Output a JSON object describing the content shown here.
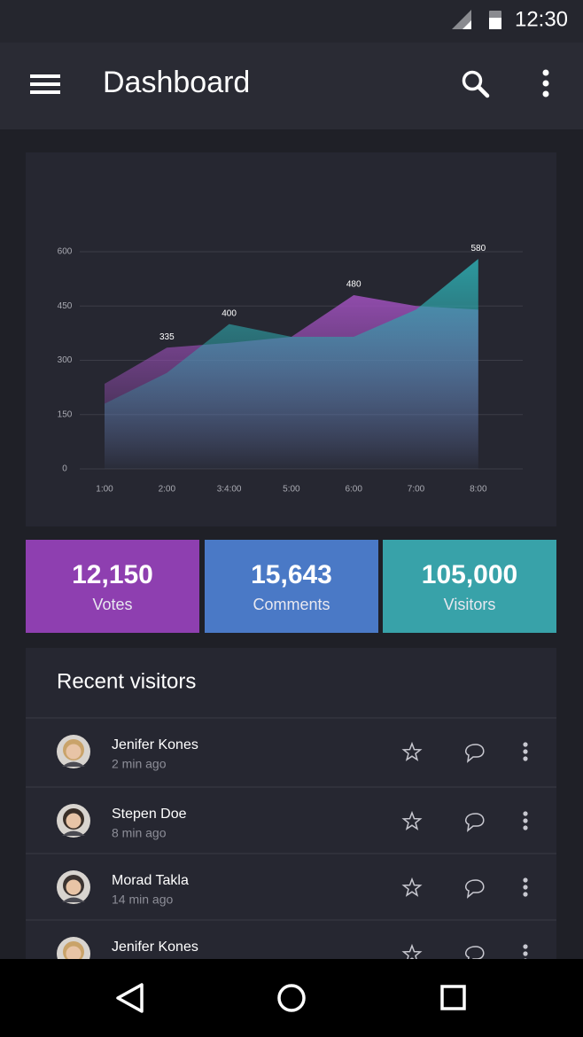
{
  "status_bar": {
    "time": "12:30"
  },
  "app_bar": {
    "title": "Dashboard"
  },
  "chart_data": {
    "type": "area",
    "categories": [
      "1:00",
      "2:00",
      "3:4:00",
      "5:00",
      "6:00",
      "7:00",
      "8:00"
    ],
    "series": [
      {
        "color": "#9b4fb8",
        "values": [
          235,
          335,
          348,
          365,
          480,
          450,
          440
        ],
        "value_labels": [
          null,
          "335",
          null,
          null,
          "480",
          null,
          null
        ]
      },
      {
        "color": "#2ea6ab",
        "values": [
          180,
          265,
          400,
          365,
          365,
          440,
          580
        ],
        "value_labels": [
          null,
          null,
          "400",
          null,
          null,
          null,
          "580"
        ]
      }
    ],
    "ylim": [
      0,
      600
    ],
    "yticks": [
      0,
      150,
      300,
      450,
      600
    ],
    "grid": true
  },
  "stats": [
    {
      "value": "12,150",
      "label": "Votes",
      "color": "#8e3fb0"
    },
    {
      "value": "15,643",
      "label": "Comments",
      "color": "#4a79c6"
    },
    {
      "value": "105,000",
      "label": "Visitors",
      "color": "#38a2a9"
    }
  ],
  "recent_visitors": {
    "title": "Recent visitors",
    "items": [
      {
        "name": "Jenifer Kones",
        "time": "2 min ago"
      },
      {
        "name": "Stepen Doe",
        "time": "8 min ago"
      },
      {
        "name": "Morad Takla",
        "time": "14 min ago"
      },
      {
        "name": "Jenifer Kones"
      }
    ]
  }
}
